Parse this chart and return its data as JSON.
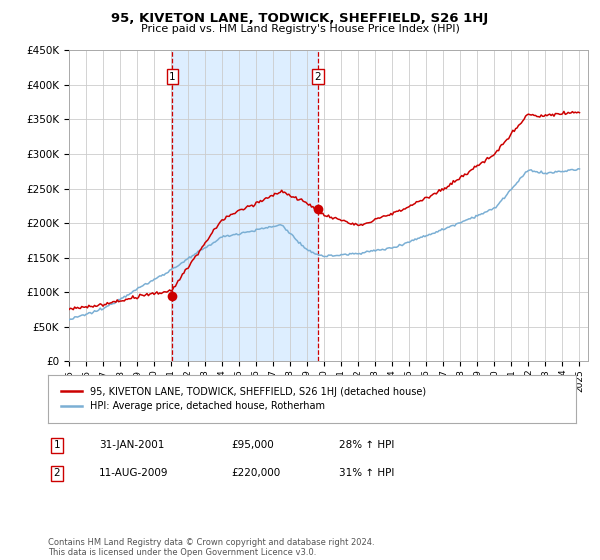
{
  "title": "95, KIVETON LANE, TODWICK, SHEFFIELD, S26 1HJ",
  "subtitle": "Price paid vs. HM Land Registry's House Price Index (HPI)",
  "legend_line1": "95, KIVETON LANE, TODWICK, SHEFFIELD, S26 1HJ (detached house)",
  "legend_line2": "HPI: Average price, detached house, Rotherham",
  "footnote": "Contains HM Land Registry data © Crown copyright and database right 2024.\nThis data is licensed under the Open Government Licence v3.0.",
  "table_rows": [
    {
      "num": "1",
      "date": "31-JAN-2001",
      "price": "£95,000",
      "hpi": "28% ↑ HPI"
    },
    {
      "num": "2",
      "date": "11-AUG-2009",
      "price": "£220,000",
      "hpi": "31% ↑ HPI"
    }
  ],
  "price_color": "#cc0000",
  "hpi_color": "#7bafd4",
  "shaded_color": "#ddeeff",
  "vline_color": "#cc0000",
  "grid_color": "#cccccc",
  "background_color": "#ffffff",
  "ylim": [
    0,
    450000
  ],
  "yticks": [
    0,
    50000,
    100000,
    150000,
    200000,
    250000,
    300000,
    350000,
    400000,
    450000
  ],
  "sale1_x": 2001.08,
  "sale1_y": 95000,
  "sale2_x": 2009.61,
  "sale2_y": 220000,
  "xlim_left": 1995,
  "xlim_right": 2025.5
}
